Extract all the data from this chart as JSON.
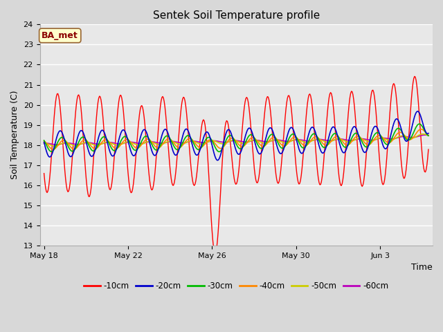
{
  "title": "Sentek Soil Temperature profile",
  "xlabel": "Time",
  "ylabel": "Soil Temperature (C)",
  "annotation": "BA_met",
  "ylim": [
    13.0,
    24.0
  ],
  "yticks": [
    13.0,
    14.0,
    15.0,
    16.0,
    17.0,
    18.0,
    19.0,
    20.0,
    21.0,
    22.0,
    23.0,
    24.0
  ],
  "xtick_labels": [
    "May 18",
    "May 22",
    "May 26",
    "May 30",
    "Jun 3"
  ],
  "xtick_positions": [
    0,
    4,
    8,
    12,
    16
  ],
  "xlim": [
    -0.2,
    18.5
  ],
  "series": {
    "-10cm": {
      "color": "#ff0000",
      "lw": 1.0
    },
    "-20cm": {
      "color": "#0000cc",
      "lw": 1.2
    },
    "-30cm": {
      "color": "#00bb00",
      "lw": 1.2
    },
    "-40cm": {
      "color": "#ff8800",
      "lw": 1.2
    },
    "-50cm": {
      "color": "#cccc00",
      "lw": 1.2
    },
    "-60cm": {
      "color": "#bb00bb",
      "lw": 1.2
    }
  },
  "background_color": "#d8d8d8",
  "plot_bg_color": "#e8e8e8",
  "title_fontsize": 11,
  "axis_label_fontsize": 9,
  "tick_fontsize": 8
}
